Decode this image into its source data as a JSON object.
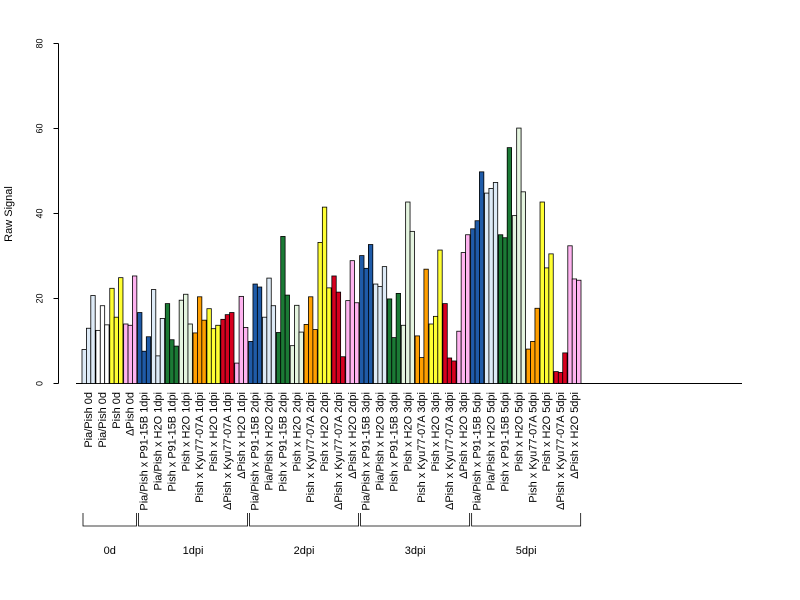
{
  "chart_data": {
    "type": "bar",
    "title": "",
    "xlabel": "",
    "ylabel": "Raw Signal",
    "ylim": [
      0,
      80
    ],
    "yticks": [
      0,
      20,
      40,
      60,
      80
    ],
    "grid": false,
    "legend": "none",
    "categories": [
      {
        "label": "Pia/Pish 0d",
        "color": "#deebf7",
        "values": [
          8,
          13,
          20.7
        ]
      },
      {
        "label": "Pia/Pish 0d",
        "color": "#ffffff",
        "values": [
          12.5,
          18.3,
          13.8
        ]
      },
      {
        "label": "Pish 0d",
        "color": "#ffff33",
        "values": [
          22.4,
          15.6,
          24.9
        ]
      },
      {
        "label": "ΔPish 0d",
        "color": "#ffb3f0",
        "values": [
          14,
          13.7,
          25.3
        ]
      },
      {
        "label": "Pia/Pish x P91-15B 1dpi",
        "color": "#1f5ba8",
        "values": [
          16.7,
          7.6,
          11
        ]
      },
      {
        "label": "Pia/Pish x H2O 1dpi",
        "color": "#deebf7",
        "values": [
          22.1,
          6.5,
          15.3
        ]
      },
      {
        "label": "Pish x P91-15B 1dpi",
        "color": "#1b7a35",
        "values": [
          18.8,
          10.3,
          8.8
        ]
      },
      {
        "label": "Pish x H2O 1dpi",
        "color": "#e5f5e0",
        "values": [
          19.6,
          21,
          14
        ]
      },
      {
        "label": "Pish x Kyu77-07A 1dpi",
        "color": "#ff9f00",
        "values": [
          11.9,
          20.4,
          14.9
        ]
      },
      {
        "label": "Pish x H2O 1dpi",
        "color": "#ffff33",
        "values": [
          17.6,
          12.9,
          13.7
        ]
      },
      {
        "label": "ΔPish x Kyu77-07A 1dpi",
        "color": "#d7001f",
        "values": [
          15.1,
          16.2,
          16.7
        ]
      },
      {
        "label": "ΔPish x H2O 1dpi",
        "color": "#ffb3f0",
        "values": [
          4.8,
          20.5,
          13.2
        ]
      },
      {
        "label": "Pia/Pish x P91-15B 2dpi",
        "color": "#1f5ba8",
        "values": [
          9.9,
          23.4,
          22.7
        ]
      },
      {
        "label": "Pia/Pish x H2O 2dpi",
        "color": "#deebf7",
        "values": [
          15.6,
          24.8,
          18.3
        ]
      },
      {
        "label": "Pish x P91-15B 2dpi",
        "color": "#1b7a35",
        "values": [
          12,
          34.6,
          20.8
        ]
      },
      {
        "label": "Pish x H2O 2dpi",
        "color": "#e5f5e0",
        "values": [
          8.9,
          18.4,
          12.1
        ]
      },
      {
        "label": "Pish x Kyu77-07A 2dpi",
        "color": "#ff9f00",
        "values": [
          13.9,
          20.4,
          12.7
        ]
      },
      {
        "label": "Pish x H2O 2dpi",
        "color": "#ffff33",
        "values": [
          33.2,
          41.5,
          22.5
        ]
      },
      {
        "label": "ΔPish x Kyu77-07A 2dpi",
        "color": "#d7001f",
        "values": [
          25.3,
          21.5,
          6.3
        ]
      },
      {
        "label": "ΔPish x H2O 2dpi",
        "color": "#ffb3f0",
        "values": [
          19.5,
          28.9,
          19
        ]
      },
      {
        "label": "Pia/Pish x P91-15B 3dpi",
        "color": "#1f5ba8",
        "values": [
          30.1,
          27.1,
          32.7
        ]
      },
      {
        "label": "Pia/Pish x H2O 3dpi",
        "color": "#deebf7",
        "values": [
          23.4,
          22.8,
          27.5
        ]
      },
      {
        "label": "Pish x P91-15B 3dpi",
        "color": "#1b7a35",
        "values": [
          19.9,
          10.8,
          21.2
        ]
      },
      {
        "label": "Pish x H2O 3dpi",
        "color": "#e5f5e0",
        "values": [
          13.7,
          42.7,
          35.8
        ]
      },
      {
        "label": "Pish x Kyu77-07A 3dpi",
        "color": "#ff9f00",
        "values": [
          11.2,
          6.1,
          26.9
        ]
      },
      {
        "label": "Pish x H2O 3dpi",
        "color": "#ffff33",
        "values": [
          14,
          15.8,
          31.4
        ]
      },
      {
        "label": "ΔPish x Kyu77-07A 3dpi",
        "color": "#d7001f",
        "values": [
          18.8,
          6,
          5.3
        ]
      },
      {
        "label": "ΔPish x H2O 3dpi",
        "color": "#ffb3f0",
        "values": [
          12.3,
          30.8,
          35
        ]
      },
      {
        "label": "Pia/Pish x P91-15B 5dpi",
        "color": "#1f5ba8",
        "values": [
          36.4,
          38.3,
          49.8
        ]
      },
      {
        "label": "Pia/Pish x H2O 5dpi",
        "color": "#deebf7",
        "values": [
          44.8,
          45.9,
          47.3
        ]
      },
      {
        "label": "Pish x P91-15B 5dpi",
        "color": "#1b7a35",
        "values": [
          35,
          34.3,
          55.5
        ]
      },
      {
        "label": "Pish x H2O 5dpi",
        "color": "#e5f5e0",
        "values": [
          39.5,
          60.1,
          45.1
        ]
      },
      {
        "label": "Pish x Kyu77-07A 5dpi",
        "color": "#ff9f00",
        "values": [
          8.1,
          9.9,
          17.7
        ]
      },
      {
        "label": "Pish x H2O 5dpi",
        "color": "#ffff33",
        "values": [
          42.7,
          27.2,
          30.5
        ]
      },
      {
        "label": "ΔPish x Kyu77-07A 5dpi",
        "color": "#d7001f",
        "values": [
          2.8,
          2.6,
          7.2
        ]
      },
      {
        "label": "ΔPish x H2O 5dpi",
        "color": "#ffb3f0",
        "values": [
          32.4,
          24.6,
          24.3
        ]
      }
    ],
    "groups": [
      {
        "label": "0d",
        "from": 0,
        "to": 3
      },
      {
        "label": "1dpi",
        "from": 4,
        "to": 11
      },
      {
        "label": "2dpi",
        "from": 12,
        "to": 19
      },
      {
        "label": "3dpi",
        "from": 20,
        "to": 27
      },
      {
        "label": "5dpi",
        "from": 28,
        "to": 35
      }
    ]
  }
}
